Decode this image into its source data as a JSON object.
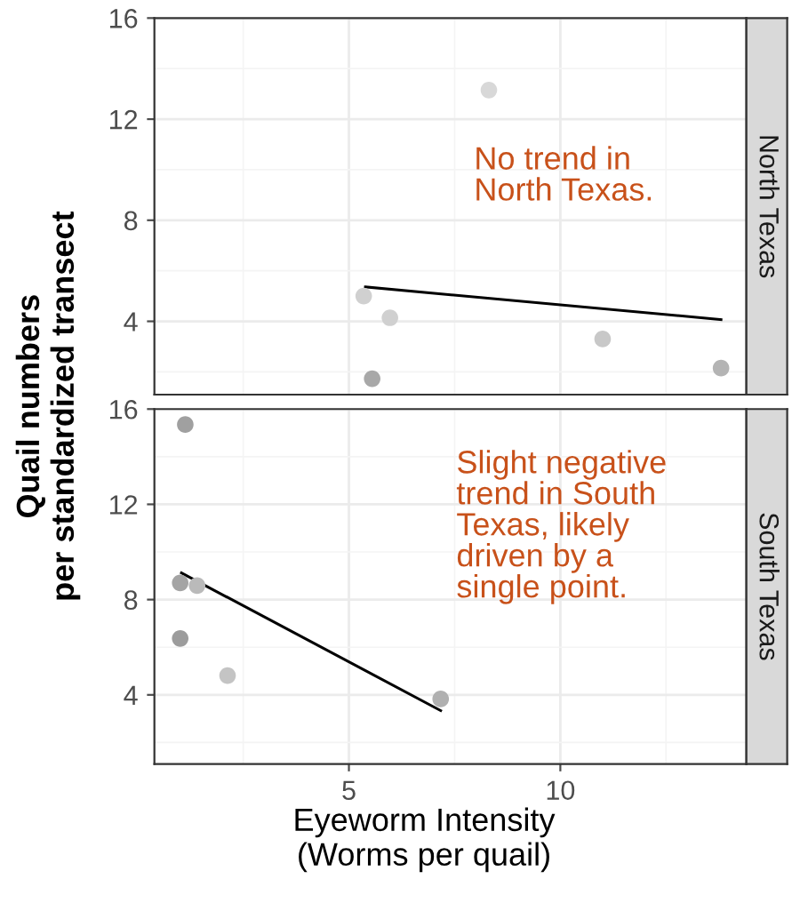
{
  "chart_data": [
    {
      "type": "scatter",
      "title": "North Texas",
      "ylabel": "Quail numbers\nper standardized transect",
      "xlim": [
        0.4,
        14.4
      ],
      "ylim": [
        1.1,
        16
      ],
      "xticks": [
        5,
        10
      ],
      "yticks": [
        4,
        8,
        12,
        16
      ],
      "grid": true,
      "tick_labels": "y",
      "annotations": [
        "No trend in\nNorth Texas."
      ],
      "series": [
        {
          "marker": "circle",
          "x": [
            5.35,
            5.97,
            5.55,
            8.31,
            11.0,
            13.8
          ],
          "values": [
            5.0,
            4.14,
            1.73,
            13.15,
            3.3,
            2.15
          ],
          "colors": [
            "#d0d0d0",
            "#d0d0d0",
            "#a8a8a8",
            "#d8d8d8",
            "#c8c8c8",
            "#b4b4b4"
          ]
        },
        {
          "type": "line",
          "x": [
            5.39,
            13.8
          ],
          "values": [
            5.36,
            4.07
          ],
          "color": "#000000"
        }
      ]
    },
    {
      "type": "scatter",
      "title": "South Texas",
      "xlabel": "Eyeworm Intensity\n(Worms per quail)",
      "xlim": [
        0.4,
        14.4
      ],
      "ylim": [
        1.1,
        16
      ],
      "xticks": [
        5,
        10
      ],
      "yticks": [
        4,
        8,
        12,
        16
      ],
      "grid": true,
      "annotations": [
        "Slight negative\ntrend in South\nTexas, likely\ndriven by a\nsingle point."
      ],
      "series": [
        {
          "marker": "circle",
          "x": [
            1.13,
            1.01,
            1.41,
            1.01,
            2.13,
            7.17
          ],
          "values": [
            15.35,
            8.7,
            8.59,
            6.37,
            4.81,
            3.83
          ],
          "colors": [
            "#a0a0a0",
            "#a4a4a4",
            "#bababa",
            "#9c9c9c",
            "#c4c4c4",
            "#b0b0b0"
          ]
        },
        {
          "type": "line",
          "x": [
            1.04,
            7.17
          ],
          "values": [
            9.12,
            3.34
          ],
          "color": "#000000"
        }
      ]
    }
  ]
}
